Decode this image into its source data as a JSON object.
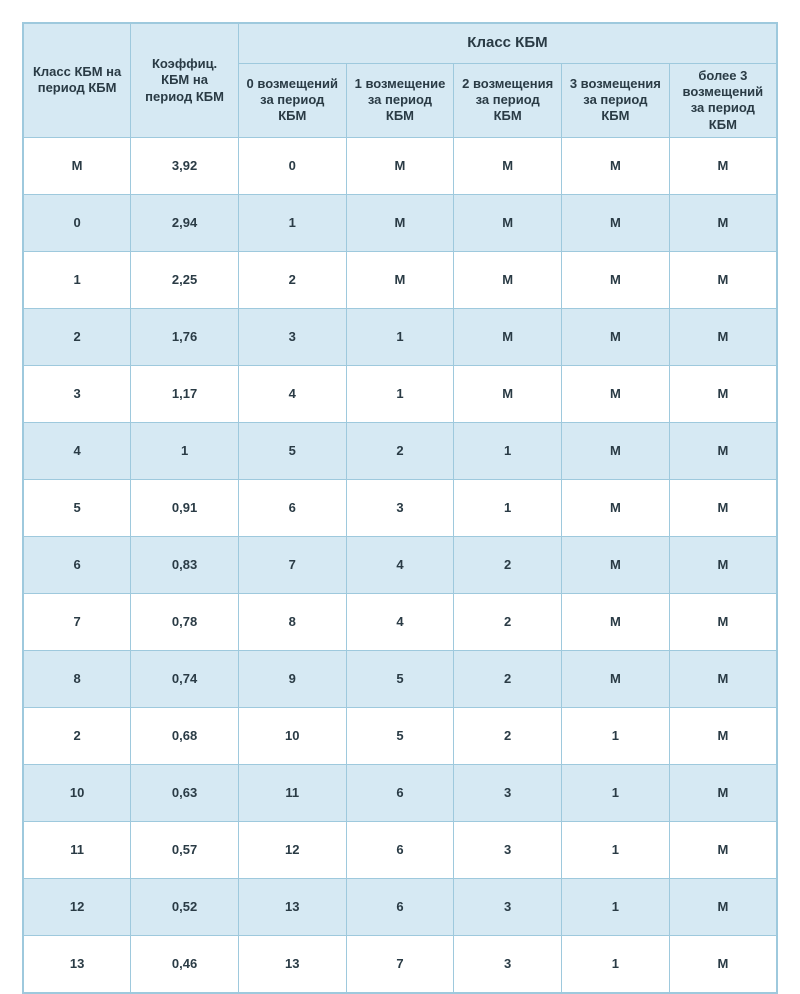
{
  "table": {
    "type": "table",
    "background_color": "#ffffff",
    "border_color": "#9ec9dd",
    "header_bg": "#d6e9f3",
    "row_odd_bg": "#ffffff",
    "row_even_bg": "#d6e9f3",
    "text_color": "#2a3b45",
    "font_family": "Arial",
    "header_fontsize_pt": 10,
    "span_header_fontsize_pt": 11,
    "body_fontsize_pt": 10,
    "body_fontweight": "bold",
    "header": {
      "col1": "Класс КБМ на период КБМ",
      "col2": "Коэффиц. КБМ на период КБМ",
      "span": "Класс КБМ",
      "sub": [
        "0 возмещений за период КБМ",
        "1 возмещение за период КБМ",
        "2 возмещения за период КБМ",
        "3 возмещения за период КБМ",
        "более 3 возмещений за период КБМ"
      ]
    },
    "column_widths_pct": [
      14.3,
      14.3,
      14.3,
      14.3,
      14.3,
      14.3,
      14.3
    ],
    "rows": [
      [
        "М",
        "3,92",
        "0",
        "М",
        "М",
        "М",
        "М"
      ],
      [
        "0",
        "2,94",
        "1",
        "М",
        "М",
        "М",
        "М"
      ],
      [
        "1",
        "2,25",
        "2",
        "М",
        "М",
        "М",
        "М"
      ],
      [
        "2",
        "1,76",
        "3",
        "1",
        "М",
        "М",
        "М"
      ],
      [
        "3",
        "1,17",
        "4",
        "1",
        "М",
        "М",
        "М"
      ],
      [
        "4",
        "1",
        "5",
        "2",
        "1",
        "М",
        "М"
      ],
      [
        "5",
        "0,91",
        "6",
        "3",
        "1",
        "М",
        "М"
      ],
      [
        "6",
        "0,83",
        "7",
        "4",
        "2",
        "М",
        "М"
      ],
      [
        "7",
        "0,78",
        "8",
        "4",
        "2",
        "М",
        "М"
      ],
      [
        "8",
        "0,74",
        "9",
        "5",
        "2",
        "М",
        "М"
      ],
      [
        "2",
        "0,68",
        "10",
        "5",
        "2",
        "1",
        "М"
      ],
      [
        "10",
        "0,63",
        "11",
        "6",
        "3",
        "1",
        "М"
      ],
      [
        "11",
        "0,57",
        "12",
        "6",
        "3",
        "1",
        "М"
      ],
      [
        "12",
        "0,52",
        "13",
        "6",
        "3",
        "1",
        "М"
      ],
      [
        "13",
        "0,46",
        "13",
        "7",
        "3",
        "1",
        "М"
      ]
    ]
  }
}
